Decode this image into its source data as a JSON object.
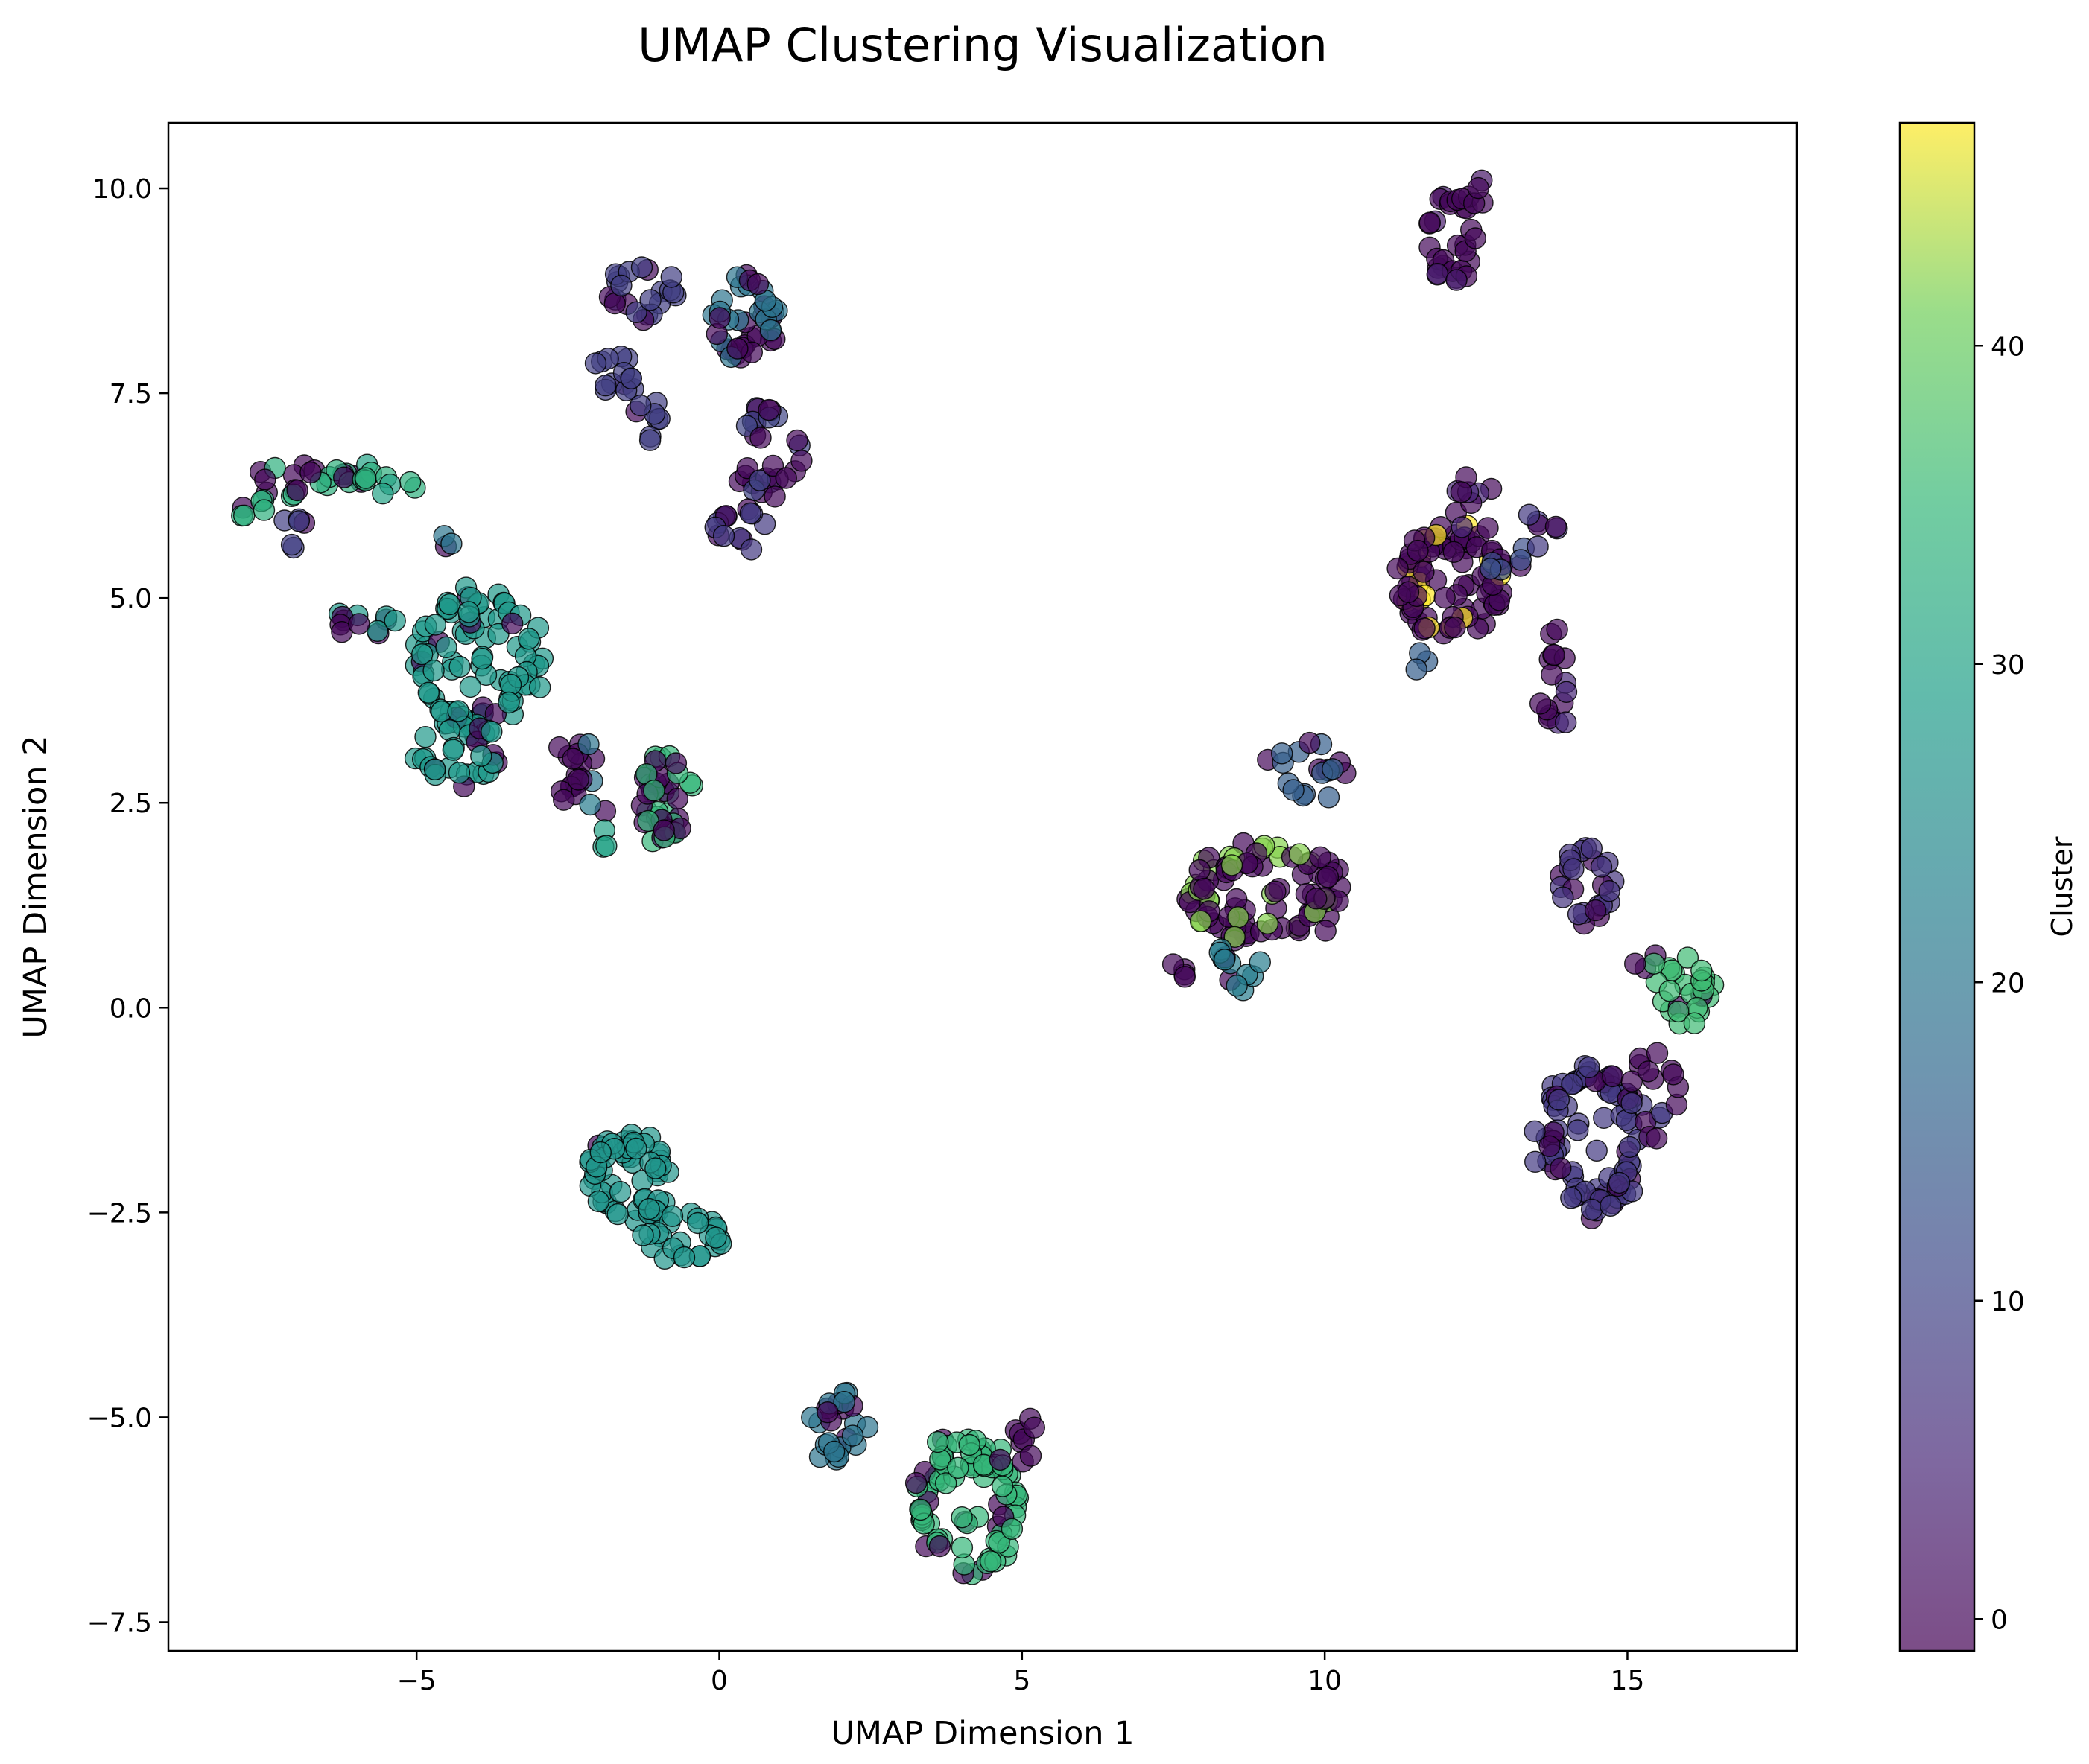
{
  "chart_data": {
    "type": "scatter",
    "title": "UMAP Clustering Visualization",
    "xlabel": "UMAP Dimension 1",
    "ylabel": "UMAP Dimension 2",
    "xlim": [
      -9.1,
      17.8
    ],
    "ylim": [
      -7.85,
      10.8
    ],
    "xticks": [
      -5,
      0,
      5,
      10,
      15
    ],
    "yticks": [
      -7.5,
      -5.0,
      -2.5,
      0.0,
      2.5,
      5.0,
      7.5,
      10.0
    ],
    "xtick_labels": [
      "−5",
      "0",
      "5",
      "10",
      "15"
    ],
    "ytick_labels": [
      "−7.5",
      "−5.0",
      "−2.5",
      "0.0",
      "2.5",
      "5.0",
      "7.5",
      "10.0"
    ],
    "colorbar": {
      "label": "Cluster",
      "colormap": "viridis",
      "range": [
        -1,
        47
      ],
      "ticks": [
        0,
        10,
        20,
        30,
        40
      ],
      "tick_labels": [
        "0",
        "10",
        "20",
        "30",
        "40"
      ]
    },
    "marker_alpha": 0.7,
    "marker_edge_color": "#000000",
    "grid": false,
    "groups": [
      {
        "cx": 12.1,
        "cy": 9.4,
        "rx": 0.35,
        "ry": 0.6,
        "n": 28,
        "main": 0,
        "alt": 3,
        "mix": 0.2
      },
      {
        "cx": 12.5,
        "cy": 9.9,
        "rx": 0.25,
        "ry": 0.15,
        "n": 6,
        "main": 0,
        "alt": 2,
        "mix": 0.2
      },
      {
        "cx": -1.3,
        "cy": 8.7,
        "rx": 0.55,
        "ry": 0.3,
        "n": 22,
        "main": 9,
        "alt": 0,
        "mix": 0.3
      },
      {
        "cx": -1.7,
        "cy": 7.8,
        "rx": 0.4,
        "ry": 0.25,
        "n": 14,
        "main": 9,
        "alt": 0,
        "mix": 0.2
      },
      {
        "cx": -1.2,
        "cy": 7.2,
        "rx": 0.25,
        "ry": 0.25,
        "n": 8,
        "main": 9,
        "alt": 0,
        "mix": 0.2
      },
      {
        "cx": 0.4,
        "cy": 8.4,
        "rx": 0.5,
        "ry": 0.55,
        "n": 40,
        "main": 0,
        "alt": 20,
        "mix": 0.45
      },
      {
        "cx": 0.8,
        "cy": 6.8,
        "rx": 0.55,
        "ry": 0.55,
        "n": 28,
        "main": 0,
        "alt": 10,
        "mix": 0.35
      },
      {
        "cx": 0.4,
        "cy": 5.9,
        "rx": 0.5,
        "ry": 0.2,
        "n": 14,
        "main": 8,
        "alt": 0,
        "mix": 0.4
      },
      {
        "cx": -6.8,
        "cy": 6.45,
        "rx": 0.9,
        "ry": 0.15,
        "n": 22,
        "main": 0,
        "alt": 33,
        "mix": 0.25
      },
      {
        "cx": -5.5,
        "cy": 6.42,
        "rx": 0.5,
        "ry": 0.1,
        "n": 10,
        "main": 33,
        "alt": 30,
        "mix": 0.3
      },
      {
        "cx": -7.7,
        "cy": 6.1,
        "rx": 0.3,
        "ry": 0.1,
        "n": 6,
        "main": 33,
        "alt": 0,
        "mix": 0.3
      },
      {
        "cx": -7.0,
        "cy": 5.8,
        "rx": 0.2,
        "ry": 0.2,
        "n": 6,
        "main": 9,
        "alt": 0,
        "mix": 0.3
      },
      {
        "cx": -4.6,
        "cy": 5.7,
        "rx": 0.12,
        "ry": 0.1,
        "n": 3,
        "main": 20,
        "alt": 0,
        "mix": 0.3
      },
      {
        "cx": -4.0,
        "cy": 4.2,
        "rx": 1.05,
        "ry": 0.85,
        "n": 95,
        "main": 28,
        "alt": 0,
        "mix": 0.1
      },
      {
        "cx": -4.3,
        "cy": 3.1,
        "rx": 0.7,
        "ry": 0.35,
        "n": 25,
        "main": 28,
        "alt": 0,
        "mix": 0.1
      },
      {
        "cx": -5.9,
        "cy": 4.7,
        "rx": 0.55,
        "ry": 0.15,
        "n": 12,
        "main": 28,
        "alt": 0,
        "mix": 0.3
      },
      {
        "cx": -0.9,
        "cy": 2.6,
        "rx": 0.35,
        "ry": 0.55,
        "n": 40,
        "main": 0,
        "alt": 35,
        "mix": 0.3
      },
      {
        "cx": -2.3,
        "cy": 3.0,
        "rx": 0.45,
        "ry": 0.3,
        "n": 12,
        "main": 0,
        "alt": 20,
        "mix": 0.3
      },
      {
        "cx": -2.2,
        "cy": 2.6,
        "rx": 0.4,
        "ry": 0.15,
        "n": 8,
        "main": 22,
        "alt": 0,
        "mix": 0.3
      },
      {
        "cx": -1.9,
        "cy": 2.0,
        "rx": 0.15,
        "ry": 0.15,
        "n": 3,
        "main": 0,
        "alt": 30,
        "mix": 0.4
      },
      {
        "cx": -1.5,
        "cy": -2.1,
        "rx": 0.65,
        "ry": 0.55,
        "n": 60,
        "main": 27,
        "alt": 0,
        "mix": 0.05
      },
      {
        "cx": -0.6,
        "cy": -2.8,
        "rx": 0.7,
        "ry": 0.25,
        "n": 25,
        "main": 27,
        "alt": 0,
        "mix": 0.05
      },
      {
        "cx": 2.0,
        "cy": -5.1,
        "rx": 0.45,
        "ry": 0.4,
        "n": 25,
        "main": 20,
        "alt": 0,
        "mix": 0.2
      },
      {
        "cx": 4.1,
        "cy": -6.1,
        "rx": 0.85,
        "ry": 0.85,
        "n": 85,
        "main": 35,
        "alt": 0,
        "mix": 0.2
      },
      {
        "cx": 5.2,
        "cy": -5.2,
        "rx": 0.3,
        "ry": 0.3,
        "n": 8,
        "main": 0,
        "alt": 35,
        "mix": 0.1
      },
      {
        "cx": 12.1,
        "cy": 5.2,
        "rx": 0.85,
        "ry": 0.65,
        "n": 80,
        "main": 0,
        "alt": 47,
        "mix": 0.18
      },
      {
        "cx": 12.5,
        "cy": 6.1,
        "rx": 0.4,
        "ry": 0.35,
        "n": 10,
        "main": 0,
        "alt": 5,
        "mix": 0.2
      },
      {
        "cx": 13.0,
        "cy": 5.5,
        "rx": 0.3,
        "ry": 0.2,
        "n": 8,
        "main": 12,
        "alt": 0,
        "mix": 0.4
      },
      {
        "cx": 13.7,
        "cy": 5.9,
        "rx": 0.3,
        "ry": 0.1,
        "n": 6,
        "main": 0,
        "alt": 8,
        "mix": 0.4
      },
      {
        "cx": 13.8,
        "cy": 4.0,
        "rx": 0.2,
        "ry": 0.6,
        "n": 16,
        "main": 0,
        "alt": 5,
        "mix": 0.2
      },
      {
        "cx": 11.6,
        "cy": 4.3,
        "rx": 0.15,
        "ry": 0.12,
        "n": 3,
        "main": 15,
        "alt": 0,
        "mix": 0.3
      },
      {
        "cx": 9.7,
        "cy": 2.9,
        "rx": 0.55,
        "ry": 0.35,
        "n": 18,
        "main": 15,
        "alt": 0,
        "mix": 0.4
      },
      {
        "cx": 9.0,
        "cy": 1.4,
        "rx": 1.25,
        "ry": 0.6,
        "n": 95,
        "main": 0,
        "alt": 42,
        "mix": 0.25
      },
      {
        "cx": 8.6,
        "cy": 0.5,
        "rx": 0.35,
        "ry": 0.25,
        "n": 12,
        "main": 22,
        "alt": 0,
        "mix": 0.3
      },
      {
        "cx": 7.6,
        "cy": 0.4,
        "rx": 0.15,
        "ry": 0.2,
        "n": 4,
        "main": 0,
        "alt": 0,
        "mix": 0.0
      },
      {
        "cx": 14.3,
        "cy": 1.5,
        "rx": 0.45,
        "ry": 0.5,
        "n": 25,
        "main": 7,
        "alt": 0,
        "mix": 0.3
      },
      {
        "cx": 14.4,
        "cy": -1.6,
        "rx": 0.85,
        "ry": 0.9,
        "n": 85,
        "main": 8,
        "alt": 0,
        "mix": 0.15
      },
      {
        "cx": 15.4,
        "cy": -1.0,
        "rx": 0.45,
        "ry": 0.6,
        "n": 18,
        "main": 0,
        "alt": 8,
        "mix": 0.3
      },
      {
        "cx": 16.0,
        "cy": 0.2,
        "rx": 0.45,
        "ry": 0.4,
        "n": 25,
        "main": 36,
        "alt": 0,
        "mix": 0.3
      },
      {
        "cx": 15.3,
        "cy": 0.5,
        "rx": 0.2,
        "ry": 0.25,
        "n": 4,
        "main": 0,
        "alt": 36,
        "mix": 0.2
      }
    ]
  }
}
